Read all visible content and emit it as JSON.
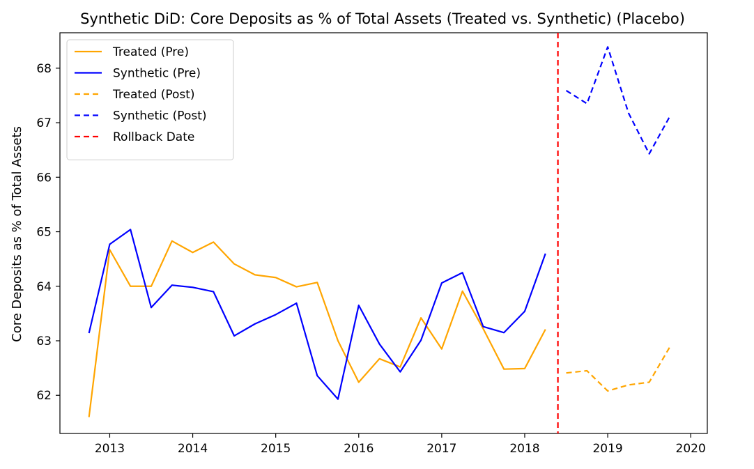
{
  "chart_data": {
    "type": "line",
    "title": "Synthetic DiD: Core Deposits as % of Total Assets (Treated vs. Synthetic) (Placebo)",
    "xlabel": "",
    "ylabel": "Core Deposits as % of Total Assets",
    "xlim": [
      2012.4,
      2020.2
    ],
    "ylim": [
      61.3,
      68.65
    ],
    "xticks": [
      2013,
      2014,
      2015,
      2016,
      2017,
      2018,
      2019,
      2020
    ],
    "yticks": [
      62,
      63,
      64,
      65,
      66,
      67,
      68
    ],
    "grid": false,
    "legend_position": "top-left",
    "rollback_date": 2018.4,
    "series": [
      {
        "name": "Treated (Pre)",
        "color": "#FFA500",
        "style": "solid",
        "points": [
          [
            2012.75,
            61.6
          ],
          [
            2013.0,
            64.67
          ],
          [
            2013.25,
            64.0
          ],
          [
            2013.5,
            64.0
          ],
          [
            2013.75,
            64.83
          ],
          [
            2014.0,
            64.62
          ],
          [
            2014.25,
            64.81
          ],
          [
            2014.5,
            64.41
          ],
          [
            2014.75,
            64.21
          ],
          [
            2015.0,
            64.16
          ],
          [
            2015.25,
            63.99
          ],
          [
            2015.5,
            64.07
          ],
          [
            2015.75,
            63.0
          ],
          [
            2016.0,
            62.24
          ],
          [
            2016.25,
            62.67
          ],
          [
            2016.5,
            62.52
          ],
          [
            2016.75,
            63.42
          ],
          [
            2017.0,
            62.85
          ],
          [
            2017.25,
            63.91
          ],
          [
            2017.5,
            63.22
          ],
          [
            2017.75,
            62.48
          ],
          [
            2018.0,
            62.49
          ],
          [
            2018.25,
            63.21
          ]
        ]
      },
      {
        "name": "Synthetic (Pre)",
        "color": "#0000FF",
        "style": "solid",
        "points": [
          [
            2012.75,
            63.14
          ],
          [
            2013.0,
            64.77
          ],
          [
            2013.25,
            65.04
          ],
          [
            2013.5,
            63.61
          ],
          [
            2013.75,
            64.02
          ],
          [
            2014.0,
            63.98
          ],
          [
            2014.25,
            63.9
          ],
          [
            2014.5,
            63.09
          ],
          [
            2014.75,
            63.31
          ],
          [
            2015.0,
            63.48
          ],
          [
            2015.25,
            63.69
          ],
          [
            2015.5,
            62.36
          ],
          [
            2015.75,
            61.93
          ],
          [
            2016.0,
            63.65
          ],
          [
            2016.25,
            62.94
          ],
          [
            2016.5,
            62.43
          ],
          [
            2016.75,
            63.01
          ],
          [
            2017.0,
            64.06
          ],
          [
            2017.25,
            64.25
          ],
          [
            2017.5,
            63.26
          ],
          [
            2017.75,
            63.15
          ],
          [
            2018.0,
            63.54
          ],
          [
            2018.25,
            64.6
          ]
        ]
      },
      {
        "name": "Treated (Post)",
        "color": "#FFA500",
        "style": "dashed",
        "points": [
          [
            2018.5,
            62.41
          ],
          [
            2018.75,
            62.45
          ],
          [
            2019.0,
            62.08
          ],
          [
            2019.25,
            62.19
          ],
          [
            2019.5,
            62.24
          ],
          [
            2019.75,
            62.89
          ]
        ]
      },
      {
        "name": "Synthetic (Post)",
        "color": "#0000FF",
        "style": "dashed",
        "points": [
          [
            2018.5,
            67.59
          ],
          [
            2018.75,
            67.35
          ],
          [
            2019.0,
            68.39
          ],
          [
            2019.25,
            67.18
          ],
          [
            2019.5,
            66.43
          ],
          [
            2019.75,
            67.12
          ]
        ]
      }
    ],
    "vline": {
      "name": "Rollback Date",
      "x": 2018.4,
      "color": "#FF0000",
      "style": "dashed"
    },
    "legend": [
      {
        "label": "Treated (Pre)",
        "color": "#FFA500",
        "style": "solid"
      },
      {
        "label": "Synthetic (Pre)",
        "color": "#0000FF",
        "style": "solid"
      },
      {
        "label": "Treated (Post)",
        "color": "#FFA500",
        "style": "dashed"
      },
      {
        "label": "Synthetic (Post)",
        "color": "#0000FF",
        "style": "dashed"
      },
      {
        "label": "Rollback Date",
        "color": "#FF0000",
        "style": "dashed"
      }
    ]
  }
}
